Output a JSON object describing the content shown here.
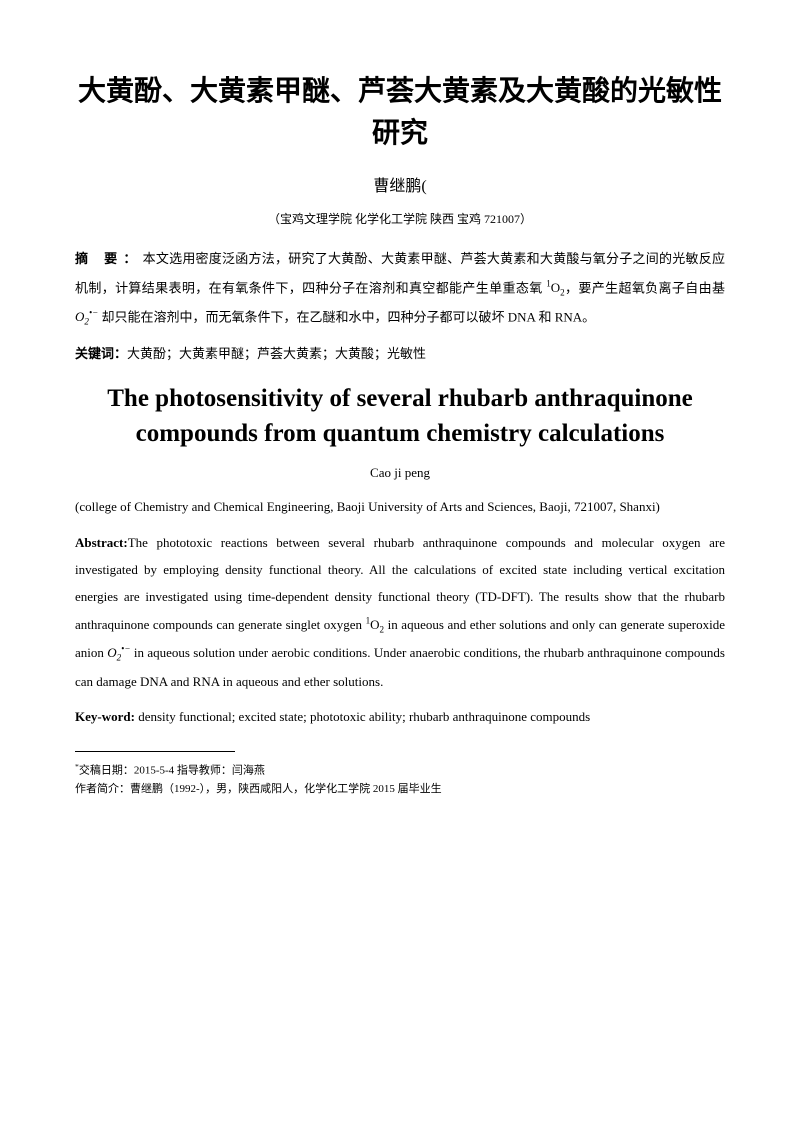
{
  "chinese": {
    "title": "大黄酚、大黄素甲醚、芦荟大黄素及大黄酸的光敏性研究",
    "author": "曹继鹏",
    "author_marker": "(",
    "affiliation": "（宝鸡文理学院 化学化工学院 陕西 宝鸡 721007）",
    "abstract_label": "摘  要：",
    "abstract_text_1": "本文选用密度泛函方法，研究了大黄酚、大黄素甲醚、芦荟大黄素和大黄酸与氧分子之间的光敏反应机制，计算结果表明，在有氧条件下，四种分子在溶剂和真空都能产生单重态氧 ",
    "singlet_oxygen": "¹O₂",
    "abstract_text_2": "，要产生超氧负离子自由基 ",
    "superoxide": "O₂•⁻",
    "abstract_text_3": " 却只能在溶剂中，而无氧条件下，在乙醚和水中，四种分子都可以破坏 DNA 和 RNA。",
    "keywords_label": "关键词：",
    "keywords": "大黄酚；大黄素甲醚；芦荟大黄素；大黄酸；光敏性"
  },
  "english": {
    "title": "The photosensitivity of several rhubarb anthraquinone compounds from quantum chemistry calculations",
    "author": "Cao ji peng",
    "affiliation": "(college of Chemistry and Chemical Engineering, Baoji University of Arts and Sciences, Baoji, 721007, Shanxi)",
    "abstract_label": "Abstract:",
    "abstract_text_1": "The phototoxic reactions between several rhubarb anthraquinone compounds and molecular oxygen are investigated by employing density functional theory. All the calculations of excited state including vertical excitation energies are investigated using time-dependent density functional theory (TD-DFT). The results show that the rhubarb anthraquinone compounds can generate singlet oxygen ",
    "singlet_oxygen_1": "¹O",
    "singlet_oxygen_2": "₂",
    "abstract_text_2": " in aqueous and ether solutions and only can generate superoxide anion ",
    "superoxide_1": "O",
    "superoxide_2": "₂•⁻",
    "abstract_text_3": " in aqueous solution under aerobic conditions. Under anaerobic conditions, the rhubarb anthraquinone compounds can damage DNA and RNA in aqueous and ether solutions.",
    "keywords_label": "Key-word:",
    "keywords": " density functional; excited state; phototoxic ability; rhubarb anthraquinone compounds"
  },
  "footnote": {
    "marker": "*",
    "line1": "交稿日期：2015-5-4    指导教师：闫海燕",
    "line2": " 作者简介：曹继鹏（1992-），男，陕西咸阳人，化学化工学院 2015 届毕业生"
  },
  "colors": {
    "background": "#ffffff",
    "text": "#000000",
    "divider": "#000000"
  }
}
